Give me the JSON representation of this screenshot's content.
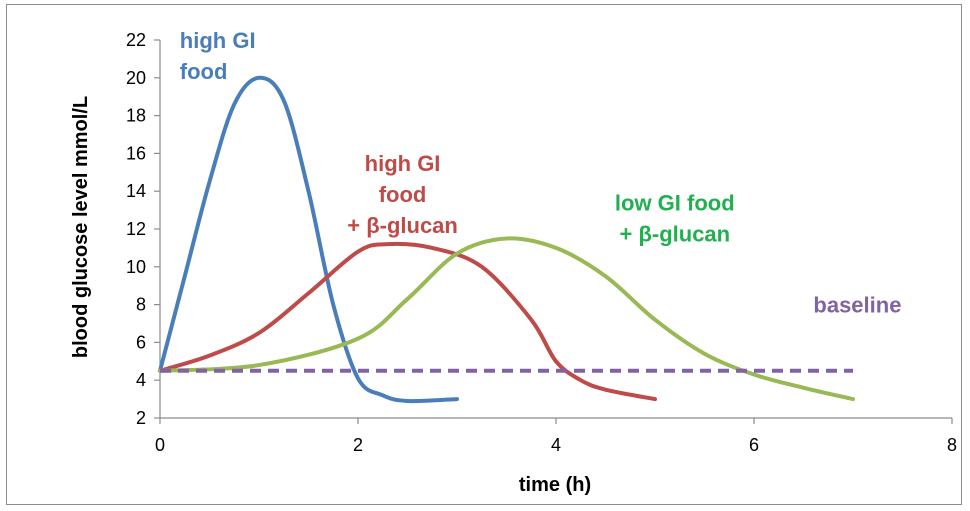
{
  "chart_data": {
    "type": "line",
    "xlabel": "time (h)",
    "ylabel": "blood glucose level mmol/L",
    "xlim": [
      0,
      8
    ],
    "ylim": [
      2,
      22
    ],
    "xticks": [
      0,
      2,
      4,
      6,
      8
    ],
    "yticks": [
      2,
      4,
      6,
      8,
      10,
      12,
      14,
      16,
      18,
      20,
      22
    ],
    "grid": false,
    "series": [
      {
        "name": "high GI food",
        "color": "#4a7ebb",
        "points": [
          [
            0,
            4.5
          ],
          [
            0.25,
            9.5
          ],
          [
            0.5,
            14.5
          ],
          [
            0.75,
            18.6
          ],
          [
            1.0,
            20.0
          ],
          [
            1.25,
            18.8
          ],
          [
            1.5,
            14.0
          ],
          [
            1.75,
            8.0
          ],
          [
            2.0,
            4.1
          ],
          [
            2.25,
            3.2
          ],
          [
            2.5,
            2.9
          ],
          [
            3.0,
            3.0
          ]
        ]
      },
      {
        "name": "high GI food + β-glucan",
        "color": "#be4b48",
        "points": [
          [
            0,
            4.5
          ],
          [
            0.5,
            5.3
          ],
          [
            1.0,
            6.5
          ],
          [
            1.5,
            8.6
          ],
          [
            2.0,
            10.8
          ],
          [
            2.3,
            11.2
          ],
          [
            2.75,
            11.0
          ],
          [
            3.25,
            10.0
          ],
          [
            3.75,
            7.2
          ],
          [
            4.0,
            5.0
          ],
          [
            4.25,
            4.0
          ],
          [
            4.5,
            3.5
          ],
          [
            5.0,
            3.0
          ]
        ]
      },
      {
        "name": "low GI food + β-glucan",
        "color": "#98b954",
        "points": [
          [
            0,
            4.5
          ],
          [
            1.0,
            4.8
          ],
          [
            2.0,
            6.2
          ],
          [
            2.5,
            8.3
          ],
          [
            3.0,
            10.7
          ],
          [
            3.5,
            11.5
          ],
          [
            4.0,
            11.0
          ],
          [
            4.5,
            9.5
          ],
          [
            5.0,
            7.2
          ],
          [
            5.5,
            5.4
          ],
          [
            6.0,
            4.3
          ],
          [
            6.5,
            3.6
          ],
          [
            7.0,
            3.0
          ]
        ]
      },
      {
        "name": "baseline",
        "color": "#7f63a2",
        "style": "dashed",
        "points": [
          [
            0,
            4.5
          ],
          [
            7.0,
            4.5
          ]
        ]
      }
    ],
    "annotations": [
      {
        "lines": [
          "high GI",
          "food"
        ],
        "color": "#4a7ebb",
        "anchor": "start",
        "x": 0.2,
        "y": 22.0
      },
      {
        "lines": [
          "high GI",
          "food",
          "+ β-glucan"
        ],
        "color": "#be4b48",
        "anchor": "middle",
        "x": 2.45,
        "y": 15.5
      },
      {
        "lines": [
          "low GI food",
          "+ β-glucan"
        ],
        "color": "#20b050",
        "anchor": "middle",
        "x": 5.2,
        "y": 13.4
      },
      {
        "lines": [
          "baseline"
        ],
        "color": "#7f63a2",
        "anchor": "start",
        "x": 6.6,
        "y": 8.0
      }
    ]
  }
}
